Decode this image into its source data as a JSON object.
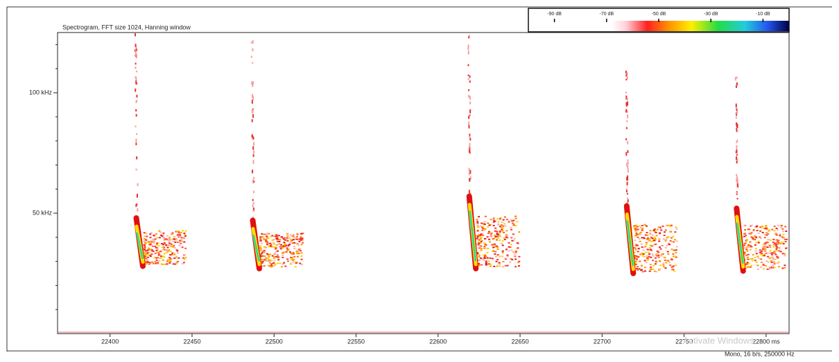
{
  "chart_data": {
    "type": "spectrogram",
    "title": "Spectrogram, FFT size 1024, Hanning window",
    "x": [
      22416,
      22487,
      22619,
      22715,
      22782
    ],
    "f_high": [
      48,
      47,
      57,
      53,
      52
    ],
    "f_low": [
      28,
      27,
      27,
      25,
      26
    ],
    "xlim": [
      22368,
      22814
    ],
    "xticks": [
      22400,
      22450,
      22500,
      22550,
      22600,
      22650,
      22700,
      {
        "value": 22750,
        "label": "22750"
      },
      {
        "value": 22800,
        "label": "22800 ms"
      }
    ],
    "ylim": [
      0,
      125
    ],
    "yticks": [
      {
        "value": 50,
        "label": "50 kHz"
      },
      {
        "value": 100,
        "label": "100 kHz"
      }
    ],
    "clim": [
      -100,
      0
    ],
    "cticks": [
      {
        "value": -90,
        "label": "-90 dB"
      },
      {
        "value": -70,
        "label": "-70 dB"
      },
      {
        "value": -50,
        "label": "-50 dB"
      },
      {
        "value": -30,
        "label": "-30 dB"
      },
      {
        "value": -10,
        "label": "-10 dB"
      }
    ],
    "status": "Mono, 16 b/s, 250000 Hz",
    "watermark": "Activate Windows"
  }
}
